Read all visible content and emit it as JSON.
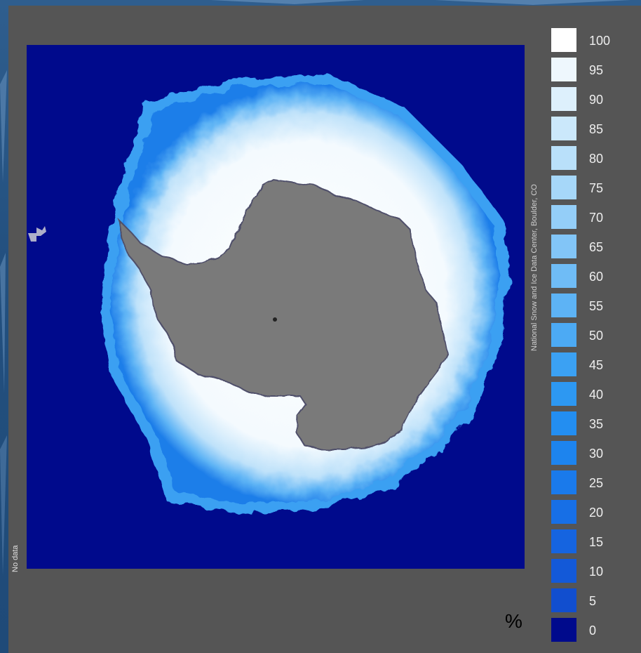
{
  "map": {
    "type": "polar sea ice concentration map",
    "region": "Antarctica",
    "colors": {
      "ocean": "#000a8c",
      "land": "#7a7a7a",
      "panel": "#555555",
      "pole_marker": "#222222"
    }
  },
  "labels": {
    "credit": "National Snow and Ice Data Center, Boulder, CO",
    "no_data": "No data",
    "unit": "%"
  },
  "legend": {
    "items": [
      {
        "label": "100",
        "color": "#ffffff"
      },
      {
        "label": "95",
        "color": "#eef7fd"
      },
      {
        "label": "90",
        "color": "#ddf0fc"
      },
      {
        "label": "85",
        "color": "#cbe8fb"
      },
      {
        "label": "80",
        "color": "#b9e0fa"
      },
      {
        "label": "75",
        "color": "#a6d7f9"
      },
      {
        "label": "70",
        "color": "#94cef8"
      },
      {
        "label": "65",
        "color": "#82c5f7"
      },
      {
        "label": "60",
        "color": "#6fbcf6"
      },
      {
        "label": "55",
        "color": "#5db3f5"
      },
      {
        "label": "50",
        "color": "#4caaf4"
      },
      {
        "label": "45",
        "color": "#3ba1f3"
      },
      {
        "label": "40",
        "color": "#2d98f2"
      },
      {
        "label": "35",
        "color": "#238ef1"
      },
      {
        "label": "30",
        "color": "#1d84ee"
      },
      {
        "label": "25",
        "color": "#1a7aeb"
      },
      {
        "label": "20",
        "color": "#176fe6"
      },
      {
        "label": "15",
        "color": "#1564e0"
      },
      {
        "label": "10",
        "color": "#1359d8"
      },
      {
        "label": "5",
        "color": "#114ecf"
      },
      {
        "label": "0",
        "color": "#000a8c"
      }
    ]
  }
}
